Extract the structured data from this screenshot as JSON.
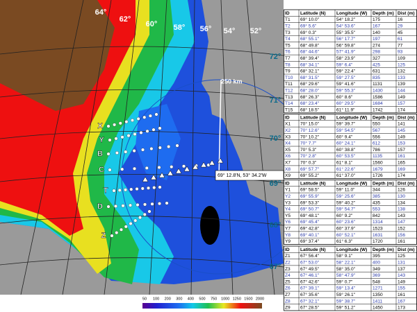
{
  "map": {
    "lon_labels": [
      "64°",
      "62°",
      "60°",
      "58°",
      "56°",
      "54°",
      "52°"
    ],
    "lat_labels": [
      "72°",
      "71°",
      "70°",
      "69°",
      "68°",
      "67°"
    ],
    "scale_label": "250 km",
    "point_label": "69° 12.8'N, 53° 34.2'W",
    "transect_labels": [
      "X",
      "Y",
      "B",
      "C",
      "T",
      "D",
      "Z"
    ],
    "colorbar_ticks": [
      50,
      100,
      200,
      300,
      400,
      500,
      750,
      1000,
      1250,
      1500,
      2000
    ]
  },
  "tables": [
    {
      "header": [
        "ID",
        "Latitude (N)",
        "Longitude (W)",
        "Depth (m)",
        "Dist (m)"
      ],
      "rows": [
        [
          "T1",
          "69° 10.0\"",
          "54° 18.2\"",
          175,
          16
        ],
        [
          "T2",
          "69° 5.6\"",
          "54° 53.6\"",
          167,
          29
        ],
        [
          "T3",
          "69° 0.3\"",
          "55° 35.5\"",
          140,
          45
        ],
        [
          "T4",
          "68° 55.1\"",
          "56° 17.7\"",
          197,
          61
        ],
        [
          "T5",
          "68° 49.8\"",
          "56° 59.8\"",
          274,
          77
        ],
        [
          "T6",
          "68° 44.6\"",
          "57° 41.9\"",
          298,
          93
        ],
        [
          "T7",
          "68° 39.4\"",
          "58° 23.9\"",
          327,
          109
        ],
        [
          "T8",
          "68° 34.1\"",
          "59° 6.4\"",
          425,
          125
        ],
        [
          "T9",
          "68° 32.1\"",
          "59° 22.4\"",
          631,
          132
        ],
        [
          "T10",
          "68° 31.5\"",
          "59° 27.5\"",
          835,
          133
        ],
        [
          "T11",
          "68° 29.6\"",
          "59° 41.6\"",
          1131,
          139
        ],
        [
          "T12",
          "68° 28.0\"",
          "59° 55.3\"",
          1430,
          144
        ],
        [
          "T13",
          "68° 26.3\"",
          "60° 8.6\"",
          1586,
          149
        ],
        [
          "T14",
          "68° 23.4\"",
          "60° 29.5\"",
          1684,
          157
        ],
        [
          "T15",
          "68° 18.5\"",
          "61° 11.9\"",
          1742,
          174
        ]
      ]
    },
    {
      "header": [
        "ID",
        "Latitude (N)",
        "Longitude (W)",
        "Depth (m)",
        "Dist (m)"
      ],
      "rows": [
        [
          "X1",
          "70° 15.0\"",
          "59° 39.7\"",
          550,
          141
        ],
        [
          "X2",
          "70° 12.6\"",
          "59° 54.5\"",
          567,
          145
        ],
        [
          "X3",
          "70° 10.2\"",
          "60° 9.4\"",
          556,
          149
        ],
        [
          "X4",
          "70° 7.7\"",
          "60° 24.1\"",
          612,
          153
        ],
        [
          "X5",
          "70° 5.3\"",
          "60° 38.8\"",
          786,
          157
        ],
        [
          "X6",
          "70° 2.8\"",
          "60° 53.5\"",
          1135,
          161
        ],
        [
          "X7",
          "70° 0.3\"",
          "61° 8.1\"",
          1560,
          165
        ],
        [
          "X8",
          "69° 57.7\"",
          "61° 22.6\"",
          1679,
          169
        ],
        [
          "X9",
          "69° 55.2\"",
          "61° 37.0\"",
          1726,
          174
        ]
      ]
    },
    {
      "header": [
        "ID",
        "Latitude (N)",
        "Longitude (W)",
        "Depth (m)",
        "Dist (m)"
      ],
      "rows": [
        [
          "Y1",
          "69° 58.5\"",
          "59° 11.0\"",
          344,
          126
        ],
        [
          "Y2",
          "69° 55.9\"",
          "59° 25.6\"",
          385,
          130
        ],
        [
          "Y3",
          "69° 53.3\"",
          "59° 40.2\"",
          435,
          134
        ],
        [
          "Y4",
          "69° 50.7\"",
          "59° 54.7\"",
          553,
          138
        ],
        [
          "Y5",
          "69° 48.1\"",
          "60° 9.2\"",
          842,
          143
        ],
        [
          "Y6",
          "69° 45.4\"",
          "60° 23.6\"",
          1314,
          147
        ],
        [
          "Y7",
          "69° 42.8\"",
          "60° 37.9\"",
          1523,
          152
        ],
        [
          "Y8",
          "69° 40.1\"",
          "60° 52.1\"",
          1631,
          156
        ],
        [
          "Y9",
          "69° 37.4\"",
          "61° 6.3\"",
          1720,
          161
        ]
      ]
    },
    {
      "header": [
        "ID",
        "Latitude (N)",
        "Longitude (W)",
        "Depth (m)",
        "Dist (m)"
      ],
      "rows": [
        [
          "Z1",
          "67° 56.4\"",
          "58° 9.1\"",
          395,
          125
        ],
        [
          "Z2",
          "67° 53.0\"",
          "58° 22.1\"",
          400,
          131
        ],
        [
          "Z3",
          "67° 49.5\"",
          "58° 35.0\"",
          349,
          137
        ],
        [
          "Z4",
          "67° 46.1\"",
          "58° 47.9\"",
          369,
          143
        ],
        [
          "Z5",
          "67° 42.6\"",
          "59° 0.7\"",
          548,
          149
        ],
        [
          "Z6",
          "67° 39.1\"",
          "59° 13.4\"",
          1271,
          155
        ],
        [
          "Z7",
          "67° 35.6\"",
          "59° 26.1\"",
          1350,
          161
        ],
        [
          "Z8",
          "67° 32.1\"",
          "59° 38.7\"",
          1411,
          167
        ],
        [
          "Z9",
          "67° 28.5\"",
          "59° 51.2\"",
          1450,
          173
        ]
      ]
    }
  ]
}
